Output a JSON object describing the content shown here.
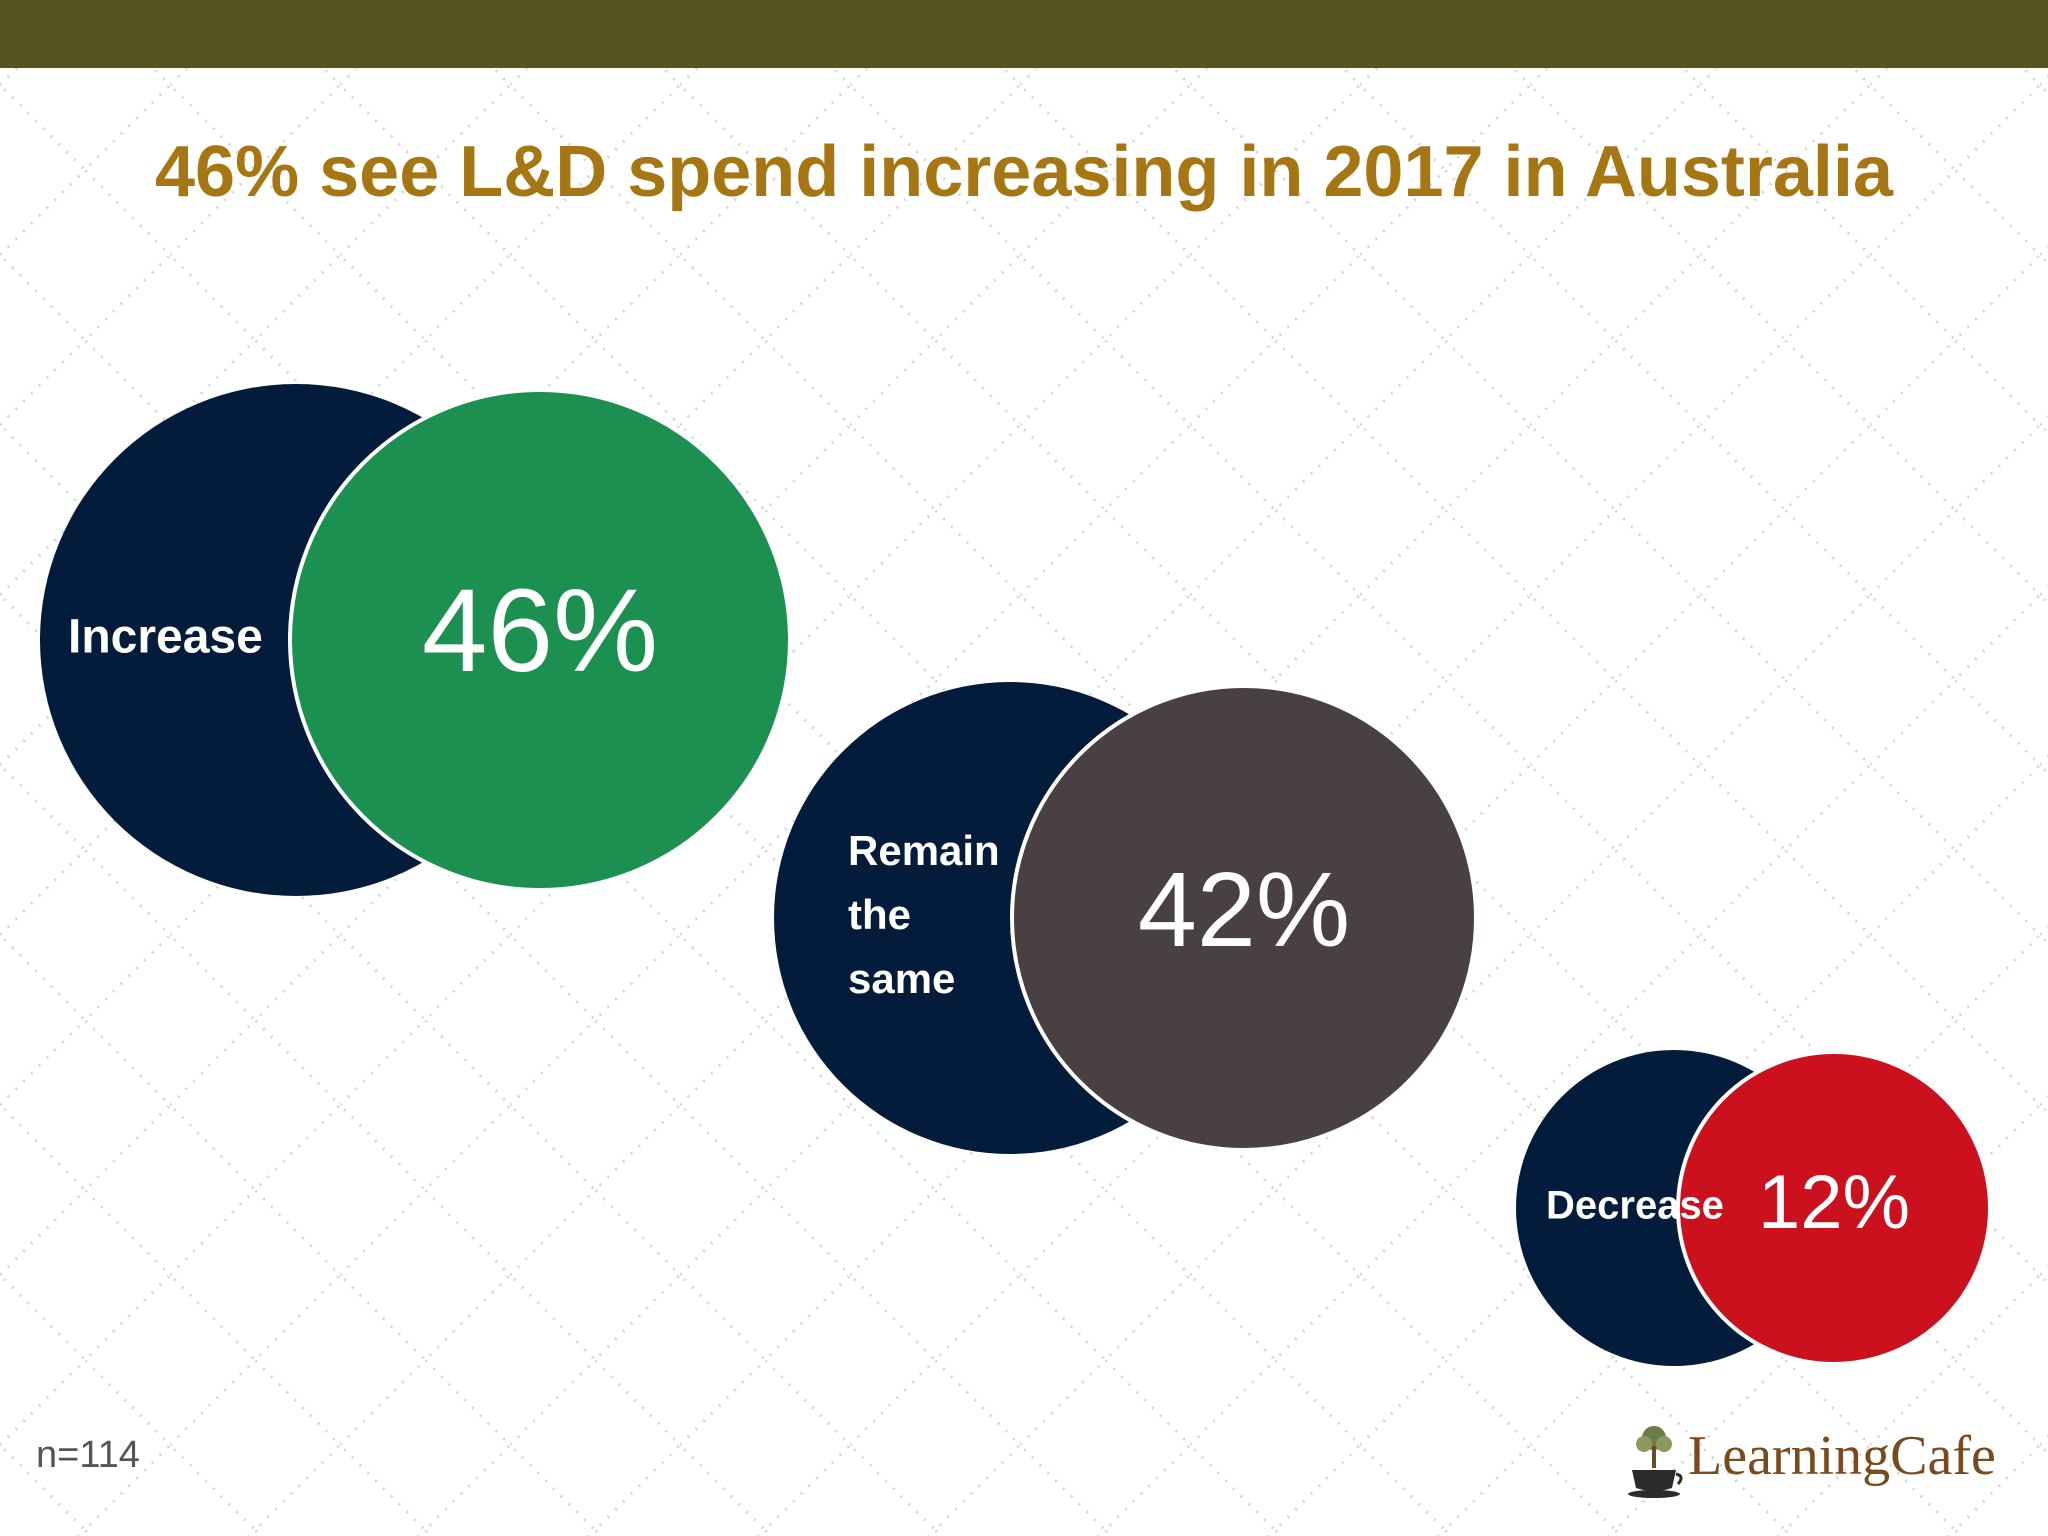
{
  "header": {
    "bar_color": "#575222"
  },
  "title": {
    "text": "46% see L&D spend increasing in 2017 in Australia",
    "color": "#A67613"
  },
  "chart_data": {
    "type": "bubble-pairs",
    "title": "46% see L&D spend increasing in 2017 in Australia",
    "unit": "%",
    "categories": [
      "Increase",
      "Remain the same",
      "Decrease"
    ],
    "values": [
      46,
      42,
      12
    ],
    "value_labels": [
      "46%",
      "42%",
      "12%"
    ],
    "label_lines": [
      [
        "Increase"
      ],
      [
        "Remain",
        "the",
        "same"
      ],
      [
        "Decrease"
      ]
    ],
    "label_circle_color": "#031C3C",
    "value_colors": [
      "#1C9051",
      "#484042",
      "#CB111D"
    ],
    "note": "n=114"
  },
  "footer": {
    "sample_size": "n=114",
    "logo_text": "LearningCafe",
    "logo_color": "#7A4A1C",
    "logo_icon": "coffee-cup-tree-icon"
  }
}
